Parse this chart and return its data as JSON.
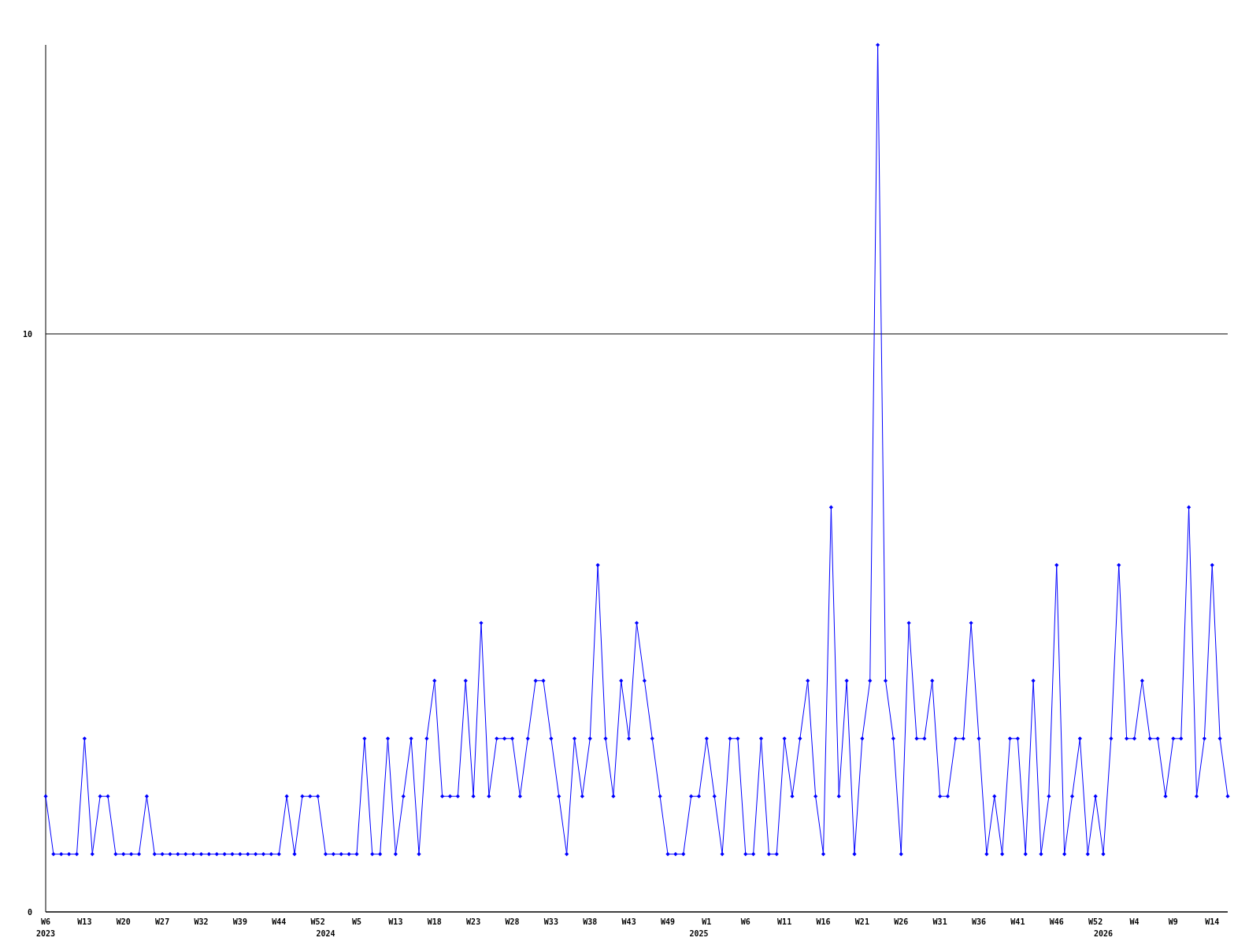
{
  "chart_data": {
    "type": "line",
    "categories": [
      "W6",
      null,
      null,
      null,
      null,
      "W13",
      null,
      null,
      null,
      null,
      "W20",
      null,
      null,
      null,
      null,
      "W27",
      null,
      null,
      null,
      null,
      "W32",
      null,
      null,
      null,
      null,
      "W39",
      null,
      null,
      null,
      null,
      "W44",
      null,
      null,
      null,
      null,
      "W52",
      null,
      null,
      null,
      null,
      "W5",
      null,
      null,
      null,
      null,
      "W13",
      null,
      null,
      null,
      null,
      "W18",
      null,
      null,
      null,
      null,
      "W23",
      null,
      null,
      null,
      null,
      "W28",
      null,
      null,
      null,
      null,
      "W33",
      null,
      null,
      null,
      null,
      "W38",
      null,
      null,
      null,
      null,
      "W43",
      null,
      null,
      null,
      null,
      "W49",
      null,
      null,
      null,
      null,
      "W1",
      null,
      null,
      null,
      null,
      "W6",
      null,
      null,
      null,
      null,
      "W11",
      null,
      null,
      null,
      null,
      "W16",
      null,
      null,
      null,
      null,
      "W21",
      null,
      null,
      null,
      null,
      "W26",
      null,
      null,
      null,
      null,
      "W31",
      null,
      null,
      null,
      null,
      "W36",
      null,
      null,
      null,
      null,
      "W41",
      null,
      null,
      null,
      null,
      "W46",
      null,
      null,
      null,
      null,
      "W52",
      null,
      null,
      null,
      null,
      "W4",
      null,
      null,
      null,
      null,
      "W9",
      null,
      null,
      null,
      null,
      "W14",
      null,
      null
    ],
    "series": [
      {
        "color": "#0000ff",
        "values": [
          2,
          1,
          1,
          1,
          1,
          3,
          1,
          2,
          2,
          1,
          1,
          1,
          1,
          2,
          1,
          1,
          1,
          1,
          1,
          1,
          1,
          1,
          1,
          1,
          1,
          1,
          1,
          1,
          1,
          1,
          1,
          2,
          1,
          2,
          2,
          2,
          1,
          1,
          1,
          1,
          1,
          3,
          1,
          1,
          3,
          1,
          2,
          3,
          1,
          3,
          4,
          2,
          2,
          2,
          4,
          2,
          5,
          2,
          3,
          3,
          3,
          2,
          3,
          4,
          4,
          3,
          2,
          1,
          3,
          2,
          3,
          6,
          3,
          2,
          4,
          3,
          5,
          4,
          3,
          2,
          1,
          1,
          1,
          2,
          2,
          3,
          2,
          1,
          3,
          3,
          1,
          1,
          3,
          1,
          1,
          3,
          2,
          3,
          4,
          2,
          1,
          7,
          2,
          4,
          1,
          3,
          4,
          15,
          4,
          3,
          1,
          5,
          3,
          3,
          4,
          2,
          2,
          3,
          3,
          5,
          3,
          1,
          2,
          1,
          3,
          3,
          1,
          4,
          1,
          2,
          6,
          1,
          2,
          3,
          1,
          2,
          1,
          3,
          6,
          3,
          3,
          4,
          3,
          3,
          2,
          3,
          3,
          7,
          2,
          3,
          6,
          3,
          2
        ]
      }
    ],
    "ylim": [
      0,
      15
    ],
    "yticks": [
      0,
      10
    ],
    "grid": "y",
    "marker": "diamond",
    "line_style": "solid",
    "annotations": [
      "2023",
      "2024",
      "2025",
      "2026"
    ]
  }
}
